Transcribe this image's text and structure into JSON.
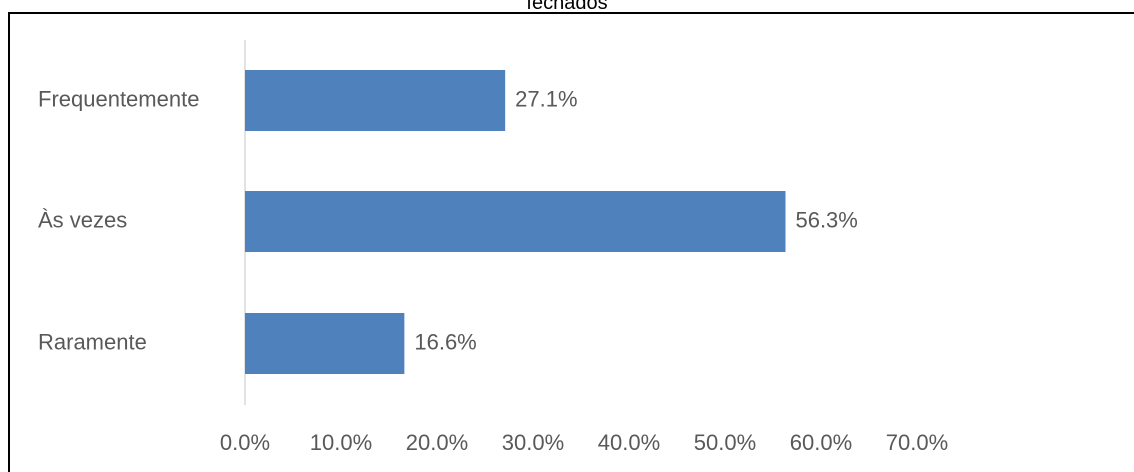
{
  "chart_data": {
    "type": "bar",
    "orientation": "horizontal",
    "title": "fechados",
    "categories": [
      "Frequentemente",
      "Às vezes",
      "Raramente"
    ],
    "values": [
      27.1,
      56.3,
      16.6
    ],
    "value_labels": [
      "27.1%",
      "56.3%",
      "16.6%"
    ],
    "xlim": [
      0,
      70
    ],
    "x_ticks": [
      0,
      10,
      20,
      30,
      40,
      50,
      60,
      70
    ],
    "x_tick_labels": [
      "0.0%",
      "10.0%",
      "20.0%",
      "30.0%",
      "40.0%",
      "50.0%",
      "60.0%",
      "70.0%"
    ],
    "xlabel": "",
    "ylabel": "",
    "grid": false,
    "legend": "none",
    "bar_color": "#4f81bd",
    "axis_color": "#d9d9d9",
    "text_color": "#595959"
  }
}
